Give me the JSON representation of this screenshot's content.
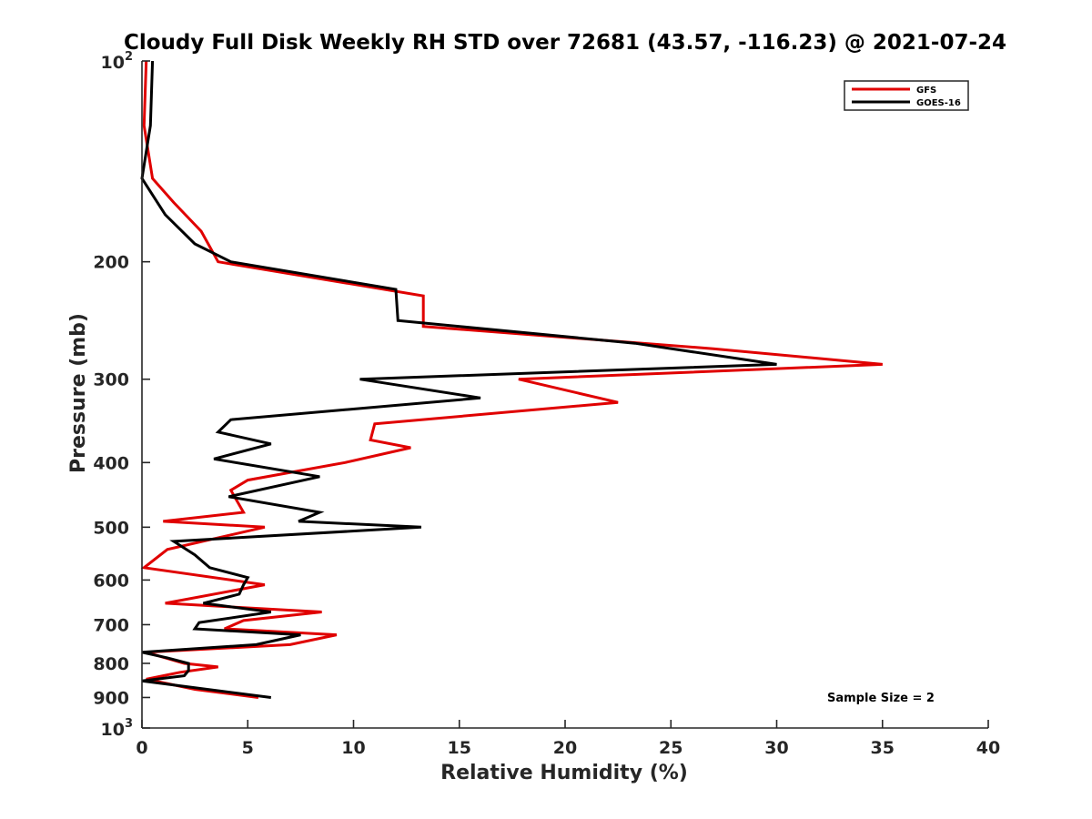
{
  "chart_data": {
    "type": "line",
    "title": "Cloudy Full Disk Weekly RH STD over 72681 (43.57, -116.23) @ 2021-07-24",
    "xlabel": "Relative Humidity (%)",
    "ylabel": "Pressure (mb)",
    "xlim": [
      0,
      40
    ],
    "ylim": [
      100,
      1000
    ],
    "y_scale": "log",
    "y_reversed": true,
    "x_ticks": [
      "0",
      "5",
      "10",
      "15",
      "20",
      "25",
      "30",
      "35",
      "40"
    ],
    "y_ticks": [
      {
        "value": 100,
        "base": "10",
        "exp": "2"
      },
      {
        "value": 200,
        "label": "200"
      },
      {
        "value": 300,
        "label": "300"
      },
      {
        "value": 400,
        "label": "400"
      },
      {
        "value": 500,
        "label": "500"
      },
      {
        "value": 600,
        "label": "600"
      },
      {
        "value": 700,
        "label": "700"
      },
      {
        "value": 800,
        "label": "800"
      },
      {
        "value": 900,
        "label": "900"
      },
      {
        "value": 1000,
        "base": "10",
        "exp": "3"
      }
    ],
    "grid": false,
    "legend_position": "top-right",
    "annotation": "Sample Size = 2",
    "series": [
      {
        "name": "GFS",
        "color": "#e00000",
        "points": [
          [
            0.2,
            100
          ],
          [
            0.1,
            125
          ],
          [
            0.5,
            150
          ],
          [
            1.5,
            163
          ],
          [
            2.8,
            180
          ],
          [
            3.6,
            200
          ],
          [
            13.3,
            225
          ],
          [
            13.3,
            250
          ],
          [
            27.0,
            270
          ],
          [
            35.0,
            285
          ],
          [
            17.8,
            300
          ],
          [
            22.5,
            325
          ],
          [
            11.0,
            350
          ],
          [
            10.8,
            370
          ],
          [
            12.7,
            380
          ],
          [
            9.6,
            400
          ],
          [
            5.0,
            425
          ],
          [
            4.2,
            440
          ],
          [
            4.8,
            475
          ],
          [
            1.0,
            490
          ],
          [
            5.8,
            500
          ],
          [
            1.2,
            540
          ],
          [
            0.1,
            575
          ],
          [
            5.8,
            610
          ],
          [
            1.1,
            650
          ],
          [
            8.5,
            670
          ],
          [
            4.8,
            690
          ],
          [
            3.9,
            710
          ],
          [
            9.2,
            725
          ],
          [
            7.0,
            750
          ],
          [
            0.2,
            770
          ],
          [
            2.0,
            800
          ],
          [
            3.6,
            810
          ],
          [
            1.8,
            825
          ],
          [
            0.2,
            845
          ],
          [
            2.5,
            875
          ],
          [
            5.5,
            900
          ]
        ]
      },
      {
        "name": "GOES-16",
        "color": "#000000",
        "points": [
          [
            0.5,
            100
          ],
          [
            0.4,
            125
          ],
          [
            0.0,
            150
          ],
          [
            1.1,
            170
          ],
          [
            2.5,
            188
          ],
          [
            4.2,
            200
          ],
          [
            12.0,
            220
          ],
          [
            12.1,
            245
          ],
          [
            23.3,
            265
          ],
          [
            30.0,
            285
          ],
          [
            10.3,
            300
          ],
          [
            16.0,
            320
          ],
          [
            4.2,
            345
          ],
          [
            3.6,
            360
          ],
          [
            6.1,
            375
          ],
          [
            3.4,
            395
          ],
          [
            8.4,
            420
          ],
          [
            4.1,
            450
          ],
          [
            8.4,
            475
          ],
          [
            7.4,
            490
          ],
          [
            13.2,
            500
          ],
          [
            1.5,
            525
          ],
          [
            2.5,
            550
          ],
          [
            3.2,
            575
          ],
          [
            5.0,
            595
          ],
          [
            4.8,
            610
          ],
          [
            4.6,
            630
          ],
          [
            2.9,
            650
          ],
          [
            6.1,
            670
          ],
          [
            2.7,
            695
          ],
          [
            2.5,
            710
          ],
          [
            7.5,
            725
          ],
          [
            5.4,
            750
          ],
          [
            0.0,
            770
          ],
          [
            1.2,
            785
          ],
          [
            2.2,
            800
          ],
          [
            2.2,
            820
          ],
          [
            2.0,
            835
          ],
          [
            0.0,
            850
          ],
          [
            6.1,
            900
          ]
        ]
      }
    ]
  }
}
